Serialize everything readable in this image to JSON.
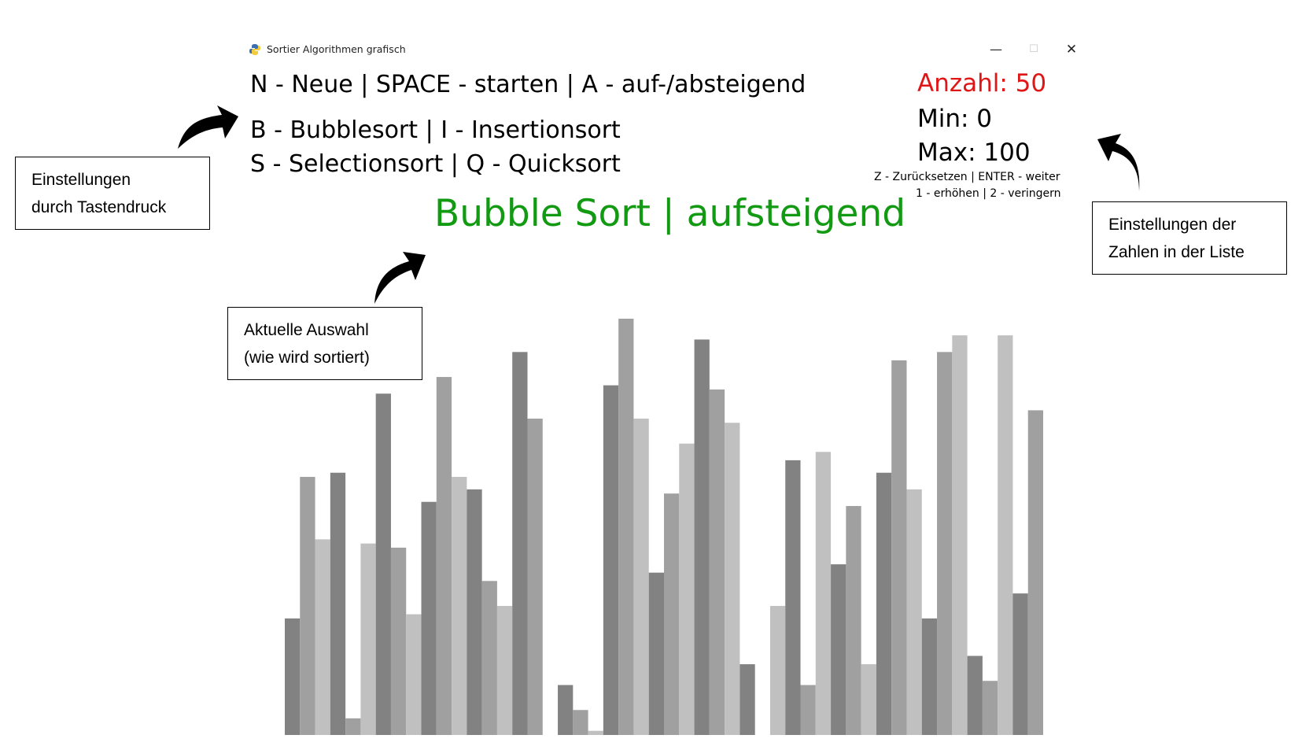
{
  "window": {
    "title": "Sortier Algorithmen grafisch",
    "minimize_glyph": "—",
    "maximize_glyph": "☐",
    "close_glyph": "✕",
    "icon": "python-icon"
  },
  "hints": {
    "line1": "N - Neue | SPACE - starten | A - auf-/absteigend",
    "line2": "B - Bubblesort | I - Insertionsort",
    "line3": "S - Selectionsort | Q - Quicksort"
  },
  "current_selection": "Bubble Sort | aufsteigend",
  "stats": {
    "count": "Anzahl: 50",
    "min": "Min: 0",
    "max": "Max: 100",
    "hint_reset": "Z - Zurücksetzen | ENTER - weiter",
    "hint_adjust": "1 - erhöhen | 2 - veringern"
  },
  "callouts": {
    "keys_line1": "Einstellungen",
    "keys_line2": "durch Tastendruck",
    "selection_line1": "Aktuelle Auswahl",
    "selection_line2": "(wie wird sortiert)",
    "numbers_line1": "Einstellungen der",
    "numbers_line2": "Zahlen in der Liste"
  },
  "colors": {
    "selection_green": "#129a12",
    "count_red": "#e01616",
    "bar_shades": [
      "#828282",
      "#a0a0a0",
      "#c0c0c0"
    ]
  },
  "chart_data": {
    "type": "bar",
    "min": 0,
    "max": 100,
    "count": 50,
    "values": [
      28,
      62,
      47,
      63,
      4,
      46,
      82,
      45,
      29,
      56,
      86,
      62,
      59,
      37,
      31,
      92,
      76,
      0,
      12,
      6,
      1,
      84,
      100,
      76,
      39,
      58,
      70,
      95,
      83,
      75,
      17,
      0,
      31,
      66,
      12,
      68,
      41,
      55,
      17,
      63,
      90,
      59,
      28,
      92,
      96,
      19,
      13,
      96,
      34,
      78
    ],
    "shade_index": [
      0,
      1,
      2,
      0,
      1,
      2,
      0,
      1,
      2,
      0,
      1,
      2,
      0,
      1,
      2,
      0,
      1,
      2,
      0,
      1,
      2,
      0,
      1,
      2,
      0,
      1,
      2,
      0,
      1,
      2,
      0,
      1,
      2,
      0,
      1,
      2,
      0,
      1,
      2,
      0,
      1,
      2,
      0,
      1,
      2,
      0,
      1,
      2,
      0,
      1
    ]
  }
}
